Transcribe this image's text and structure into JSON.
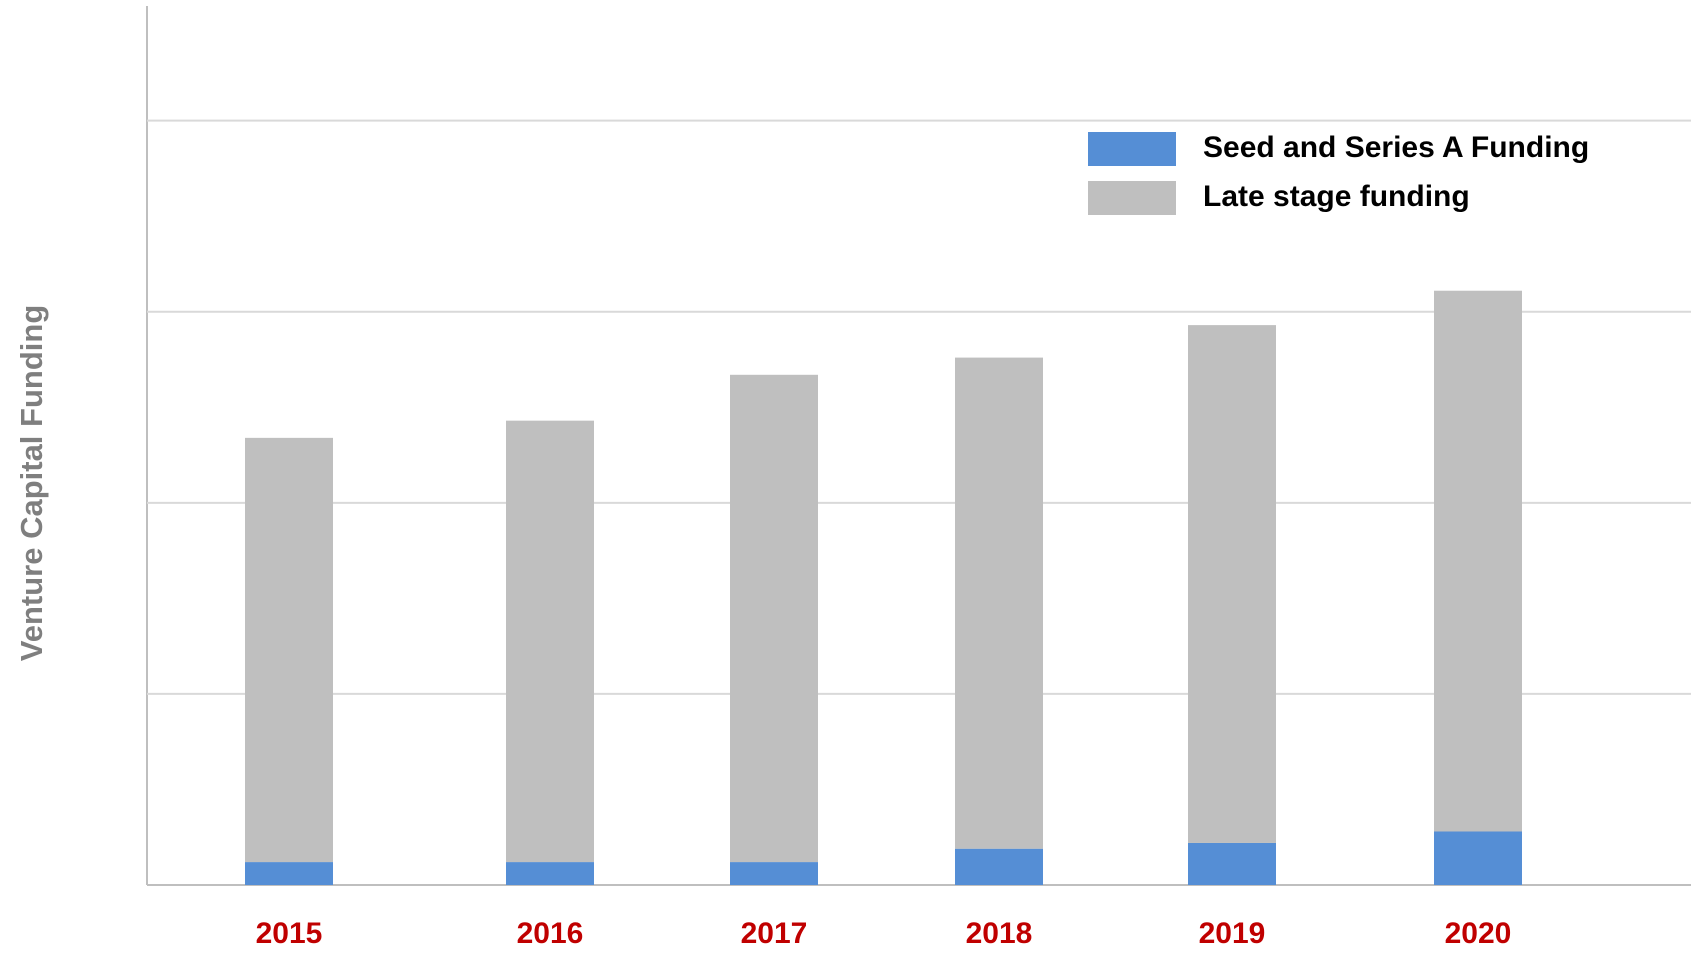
{
  "chart_data": {
    "type": "bar",
    "stacked": true,
    "ylabel": "Venture Capital Funding",
    "categories": [
      "2015",
      "2016",
      "2017",
      "2018",
      "2019",
      "2020"
    ],
    "series": [
      {
        "name": "Seed and Series A Funding",
        "color": "#558ed5",
        "values": [
          0.12,
          0.12,
          0.12,
          0.19,
          0.22,
          0.28
        ]
      },
      {
        "name": "Late stage funding",
        "color": "#bfbfbf",
        "values": [
          2.22,
          2.31,
          2.55,
          2.57,
          2.71,
          2.83
        ]
      }
    ],
    "ylim": [
      0,
      4.6
    ],
    "yticks": [
      0,
      1,
      2,
      3,
      4
    ],
    "grid": true,
    "legend": "upper right"
  }
}
